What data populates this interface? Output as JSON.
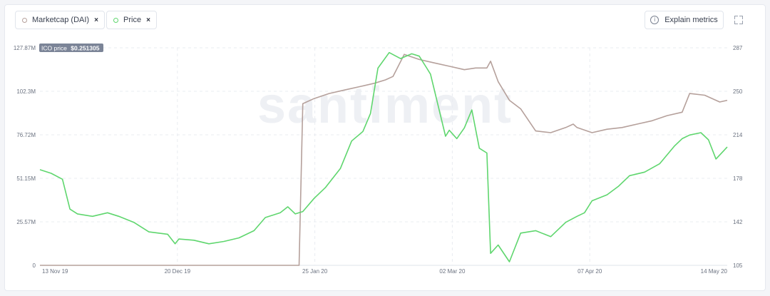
{
  "legend": [
    {
      "label": "Marketcap (DAI)",
      "color": "#b5a09b",
      "remove": "×"
    },
    {
      "label": "Price",
      "color": "#5fd66e",
      "remove": "×"
    }
  ],
  "toolbar": {
    "explain_label": "Explain metrics",
    "info_glyph": "i"
  },
  "ico_label": {
    "prefix": "ICO price",
    "value": "$0.251305"
  },
  "watermark": "santiment",
  "chart_data": {
    "type": "line",
    "x_ticks": [
      "13 Nov 19",
      "20 Dec 19",
      "25 Jan 20",
      "02 Mar 20",
      "07 Apr 20",
      "14 May 20"
    ],
    "x_range": [
      "2019-11-13",
      "2020-05-14"
    ],
    "left_axis": {
      "series": "Marketcap (DAI)",
      "ticks": [
        "127.87M",
        "102.3M",
        "76.72M",
        "51.15M",
        "25.57M",
        "0"
      ],
      "range": [
        0,
        127.87
      ]
    },
    "right_axis": {
      "series": "Price",
      "ticks": [
        "287",
        "250",
        "214",
        "178",
        "142",
        "105"
      ],
      "range": [
        105,
        287
      ]
    },
    "grid": true,
    "series": [
      {
        "name": "Marketcap (DAI)",
        "color": "#b5a09b",
        "axis": "left",
        "x": [
          "2019-11-13",
          "2020-01-20",
          "2020-01-21",
          "2020-01-22",
          "2020-01-25",
          "2020-01-29",
          "2020-02-02",
          "2020-02-06",
          "2020-02-10",
          "2020-02-13",
          "2020-02-15",
          "2020-02-18",
          "2020-02-22",
          "2020-02-26",
          "2020-03-01",
          "2020-03-05",
          "2020-03-08",
          "2020-03-11",
          "2020-03-12",
          "2020-03-14",
          "2020-03-17",
          "2020-03-20",
          "2020-03-24",
          "2020-03-28",
          "2020-04-01",
          "2020-04-03",
          "2020-04-04",
          "2020-04-08",
          "2020-04-12",
          "2020-04-16",
          "2020-04-20",
          "2020-04-24",
          "2020-04-28",
          "2020-05-02",
          "2020-05-04",
          "2020-05-08",
          "2020-05-12",
          "2020-05-14"
        ],
        "values": [
          0,
          0,
          0,
          95,
          98,
          101,
          103,
          105,
          107,
          109,
          111,
          124,
          121,
          119,
          117,
          115,
          116,
          116,
          120,
          108,
          97,
          92,
          79,
          78,
          81,
          83,
          81,
          78,
          80,
          81,
          83,
          85,
          88,
          90,
          101,
          100,
          96,
          97
        ]
      },
      {
        "name": "Price",
        "color": "#5fd66e",
        "axis": "right",
        "x": [
          "2019-11-13",
          "2019-11-16",
          "2019-11-19",
          "2019-11-21",
          "2019-11-23",
          "2019-11-27",
          "2019-12-01",
          "2019-12-04",
          "2019-12-08",
          "2019-12-12",
          "2019-12-17",
          "2019-12-19",
          "2019-12-20",
          "2019-12-24",
          "2019-12-28",
          "2020-01-01",
          "2020-01-05",
          "2020-01-09",
          "2020-01-12",
          "2020-01-16",
          "2020-01-18",
          "2020-01-20",
          "2020-01-22",
          "2020-01-25",
          "2020-01-28",
          "2020-02-01",
          "2020-02-04",
          "2020-02-07",
          "2020-02-09",
          "2020-02-11",
          "2020-02-14",
          "2020-02-17",
          "2020-02-20",
          "2020-02-22",
          "2020-02-24",
          "2020-02-25",
          "2020-02-26",
          "2020-02-29",
          "2020-03-01",
          "2020-03-03",
          "2020-03-05",
          "2020-03-07",
          "2020-03-09",
          "2020-03-11",
          "2020-03-12",
          "2020-03-14",
          "2020-03-17",
          "2020-03-20",
          "2020-03-24",
          "2020-03-28",
          "2020-04-01",
          "2020-04-04",
          "2020-04-06",
          "2020-04-08",
          "2020-04-12",
          "2020-04-15",
          "2020-04-18",
          "2020-04-22",
          "2020-04-26",
          "2020-04-30",
          "2020-05-02",
          "2020-05-04",
          "2020-05-07",
          "2020-05-09",
          "2020-05-11",
          "2020-05-14"
        ],
        "values": [
          185,
          182,
          177,
          152,
          148,
          146,
          149,
          146,
          141,
          133,
          131,
          123,
          127,
          126,
          123,
          125,
          128,
          134,
          145,
          149,
          154,
          148,
          150,
          161,
          170,
          186,
          209,
          217,
          232,
          270,
          283,
          278,
          282,
          280,
          270,
          265,
          252,
          213,
          218,
          211,
          220,
          235,
          203,
          199,
          115,
          122,
          108,
          132,
          134,
          129,
          141,
          146,
          149,
          159,
          164,
          171,
          180,
          183,
          190,
          205,
          211,
          214,
          216,
          210,
          194,
          204
        ]
      }
    ]
  }
}
